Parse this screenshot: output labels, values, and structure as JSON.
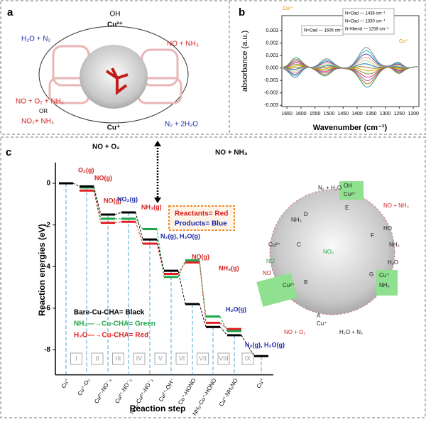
{
  "panel_a": {
    "label": "a",
    "top_species": "OH",
    "top_ion": "Cu²⁺",
    "left_top": "H₂O + N₂",
    "right_top": "NO + NH₃",
    "left_bottom_1": "NO + O₂ + NH₃",
    "or": "OR",
    "left_bottom_2": "NO₂+ NH₃",
    "bottom_ion": "Cu⁺",
    "right_bottom": "N₂ + 2H₂O"
  },
  "panel_b": {
    "label": "b",
    "y_label": "absorbance (a.u.)",
    "x_label": "Wavenumber (cm⁻¹)",
    "ylim": [
      -0.0031,
      0.0042
    ],
    "yticks": [
      0.003,
      0.002,
      0.001,
      {
        "value": 0,
        "label": "0.000"
      },
      -0.001,
      -0.002,
      -0.003
    ],
    "xlim": [
      1668,
      1180
    ],
    "xticks": [
      1650,
      1600,
      1550,
      1500,
      1450,
      1400,
      1350,
      1300,
      1250,
      1200
    ],
    "annotations": [
      "Cu²⁺",
      "N=Oad — 1606 cm⁻¹",
      "N=Oad — 1436 cm⁻¹",
      "N=Oad — 1330 cm⁻¹",
      "N-Hbend — 1258 cm⁻¹",
      "Cu⁺"
    ]
  },
  "panel_c": {
    "label": "c",
    "type": "energy-steps",
    "left_header": "NO + O₂",
    "right_header": "NO + NH₃",
    "y_label": "Reaction energies (eV)",
    "x_label": "Reaction step",
    "ylim": [
      -9.2,
      1.0
    ],
    "yticks": [
      0,
      -2,
      -4,
      -6,
      -8
    ],
    "categories": [
      "Cu⁺",
      "Cu⁺-O₂",
      "Cu²⁺-NO⁻₃",
      "Cu²⁺-NO⁻₂",
      "NH₃-Cu²⁺-NO⁻₂",
      "Cu²⁺-OH⁻",
      "Cu⁺-HONO",
      "NH₃-Cu⁺-HONO",
      "Cu⁺-NH₂NO",
      "Cu⁺"
    ],
    "step_numbers": [
      "I",
      "II",
      "III",
      "IV",
      "V",
      "VI",
      "VII",
      "VIII",
      "IX"
    ],
    "series": [
      {
        "name": "Bare-Cu-CHA= Black",
        "color": "#000000",
        "values": [
          0,
          -0.15,
          -1.5,
          -1.4,
          -2.7,
          -4.2,
          -5.8,
          -6.9,
          -7.3,
          -8.3
        ]
      },
      {
        "name": "NH₃---→Cu-CHA= Green",
        "color": "#1fa64a",
        "values": [
          null,
          -0.2,
          -1.7,
          -1.7,
          -2.2,
          -4.5,
          -3.7,
          -6.4,
          -7.1,
          null
        ]
      },
      {
        "name": "H₂O---→Cu-CHA= Red",
        "color": "#e02020",
        "values": [
          null,
          -0.35,
          -1.9,
          -1.85,
          -2.9,
          -4.35,
          -3.8,
          -6.7,
          -7.0,
          null
        ]
      }
    ],
    "species": [
      "O₂(g)",
      "NO(g)",
      "NO(g)",
      "NO₂(g)",
      "NH₃(g)",
      "N₂(g), H₂O(g)",
      "NO(g)",
      "NH₃(g)",
      "H₂O(g)",
      "N₂(g), H₂O(g)"
    ],
    "key": [
      "Reactants= Red",
      "Products= Blue"
    ],
    "cycle_labels": [
      "N₂ + H₂O",
      "OH",
      "Cu²⁺",
      "NO + NH₃",
      "D",
      "E",
      "F",
      "NH₃",
      "HO",
      "Cu²⁺",
      "NH₃",
      "NO",
      "H₂O",
      "C",
      "Cu²⁺",
      "NO₂",
      "NO",
      "G",
      "Cu⁺",
      "NH₃",
      "B",
      "A",
      "Cu⁺",
      "NO + O₂",
      "H₂O + N₂"
    ]
  }
}
